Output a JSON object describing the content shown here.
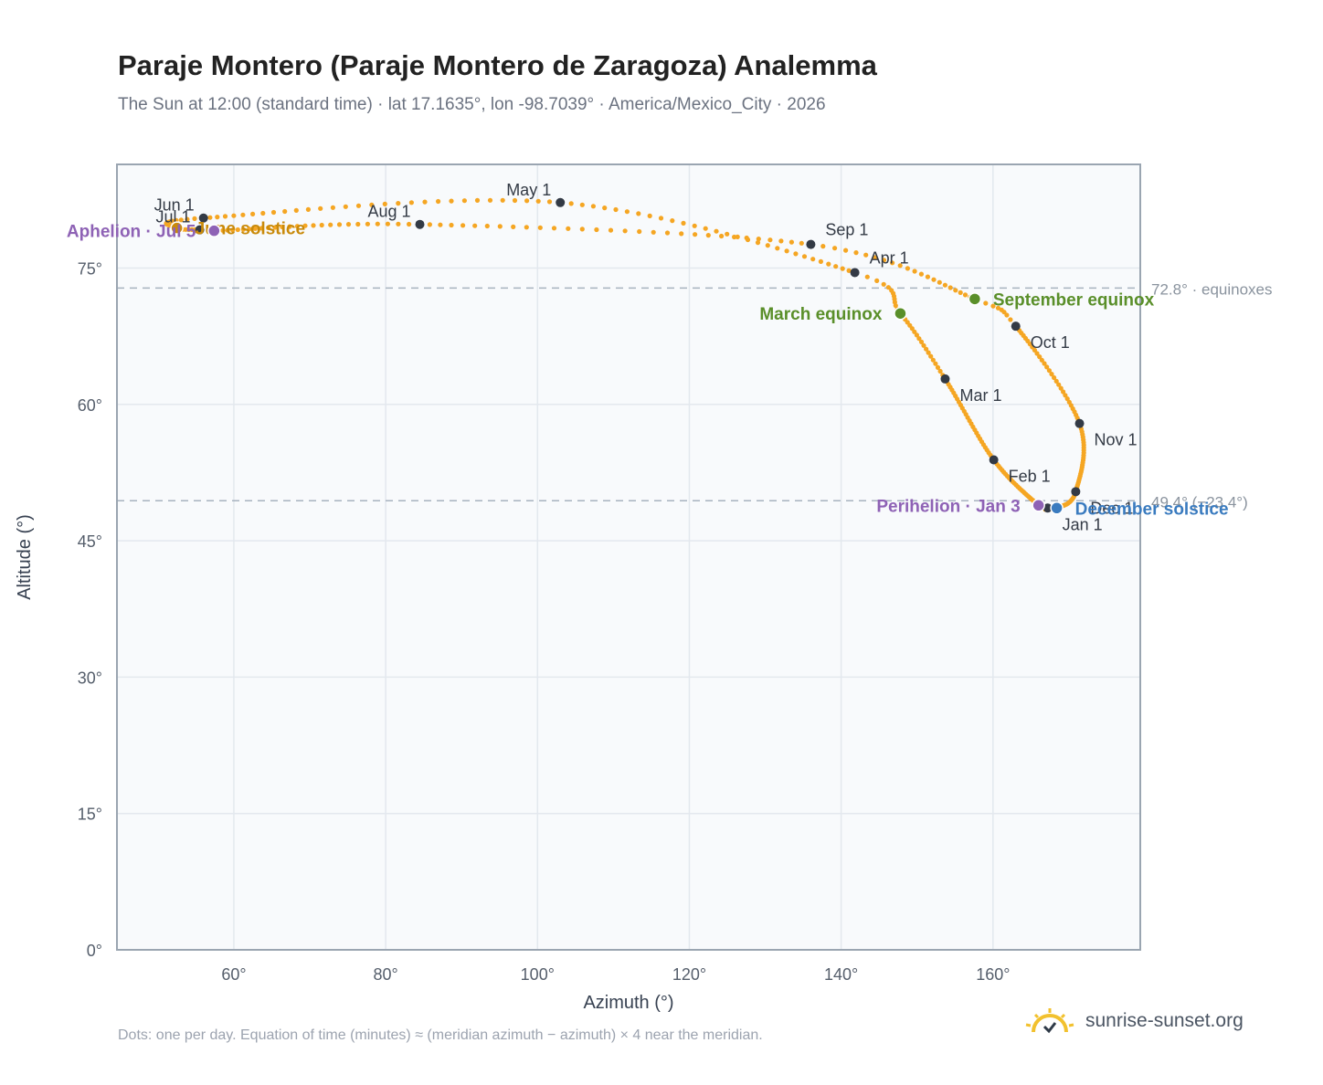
{
  "header": {
    "title": "Paraje Montero (Paraje Montero de Zaragoza) Analemma",
    "subtitle": "The Sun at 12:00 (standard time) · lat 17.1635°, lon -98.7039° · America/Mexico_City · 2026"
  },
  "footer": {
    "note": "Dots: one per day. Equation of time (minutes) ≈ (meridian azimuth − azimuth) × 4 near the meridian.",
    "brand": "sunrise-sunset.org",
    "brand_icon": "sun-logo-icon"
  },
  "colors": {
    "curve": "#f5a623",
    "month_marker": "#333a45",
    "equinox": "#5a8f2a",
    "solstice_dec": "#3a7bbf",
    "solstice_jun": "#c98a0a",
    "apsis": "#8e62b5",
    "reference_line": "#a7b3bf",
    "plot_bg": "#f8fafc",
    "grid": "#e3e8ee",
    "frame": "#9aa5b1"
  },
  "chart_data": {
    "type": "scatter",
    "xlabel": "Azimuth (°)",
    "ylabel": "Altitude (°)",
    "xlim": [
      44.6,
      179.4
    ],
    "ylim": [
      0,
      86.4
    ],
    "xticks": [
      60,
      80,
      100,
      120,
      140,
      160
    ],
    "yticks": [
      0,
      15,
      30,
      45,
      60,
      75
    ],
    "xtick_labels": [
      "60°",
      "80°",
      "100°",
      "120°",
      "140°",
      "160°"
    ],
    "ytick_labels": [
      "0°",
      "15°",
      "30°",
      "45°",
      "60°",
      "75°"
    ],
    "grid": true,
    "anchors": [
      {
        "doy": 1,
        "az": 167.2,
        "alt": 48.6
      },
      {
        "doy": 3,
        "az": 166.0,
        "alt": 48.9
      },
      {
        "doy": 32,
        "az": 160.1,
        "alt": 53.9
      },
      {
        "doy": 60,
        "az": 153.7,
        "alt": 62.8
      },
      {
        "doy": 79,
        "az": 147.8,
        "alt": 70.0
      },
      {
        "doy": 91,
        "az": 141.8,
        "alt": 74.5
      },
      {
        "doy": 121,
        "az": 103.0,
        "alt": 82.2
      },
      {
        "doy": 152,
        "az": 56.0,
        "alt": 80.5
      },
      {
        "doy": 172,
        "az": 52.5,
        "alt": 79.4
      },
      {
        "doy": 182,
        "az": 55.5,
        "alt": 79.2
      },
      {
        "doy": 186,
        "az": 57.4,
        "alt": 79.1
      },
      {
        "doy": 213,
        "az": 84.5,
        "alt": 79.8
      },
      {
        "doy": 244,
        "az": 136.0,
        "alt": 77.6
      },
      {
        "doy": 266,
        "az": 157.6,
        "alt": 71.6
      },
      {
        "doy": 274,
        "az": 163.0,
        "alt": 68.6
      },
      {
        "doy": 305,
        "az": 171.4,
        "alt": 57.9
      },
      {
        "doy": 335,
        "az": 170.9,
        "alt": 50.4
      },
      {
        "doy": 355,
        "az": 168.4,
        "alt": 48.6
      },
      {
        "doy": 366,
        "az": 167.2,
        "alt": 48.6
      }
    ],
    "month_markers": [
      {
        "label": "Jan 1",
        "az": 167.2,
        "alt": 48.6,
        "anchor": "start"
      },
      {
        "label": "Feb 1",
        "az": 160.1,
        "alt": 53.9,
        "anchor": "start"
      },
      {
        "label": "Mar 1",
        "az": 153.7,
        "alt": 62.8,
        "anchor": "start"
      },
      {
        "label": "Apr 1",
        "az": 141.8,
        "alt": 74.5,
        "anchor": "start"
      },
      {
        "label": "May 1",
        "az": 103.0,
        "alt": 82.2,
        "anchor": "end"
      },
      {
        "label": "Jun 1",
        "az": 56.0,
        "alt": 80.5,
        "anchor": "end"
      },
      {
        "label": "Jul 1",
        "az": 55.5,
        "alt": 79.2,
        "anchor": "end"
      },
      {
        "label": "Aug 1",
        "az": 84.5,
        "alt": 79.8,
        "anchor": "end"
      },
      {
        "label": "Sep 1",
        "az": 136.0,
        "alt": 77.6,
        "anchor": "start"
      },
      {
        "label": "Oct 1",
        "az": 163.0,
        "alt": 68.6,
        "anchor": "start"
      },
      {
        "label": "Nov 1",
        "az": 171.4,
        "alt": 57.9,
        "anchor": "start"
      },
      {
        "label": "Dec 1",
        "az": 170.9,
        "alt": 50.4,
        "anchor": "start"
      }
    ],
    "events": [
      {
        "label": "March equinox",
        "az": 147.8,
        "alt": 70.0,
        "color_key": "equinox",
        "side": "left"
      },
      {
        "label": "September equinox",
        "az": 157.6,
        "alt": 71.6,
        "color_key": "equinox",
        "side": "right"
      },
      {
        "label": "June solstice",
        "az": 52.5,
        "alt": 79.4,
        "color_key": "solstice_jun",
        "side": "right"
      },
      {
        "label": "December solstice",
        "az": 168.4,
        "alt": 48.6,
        "color_key": "solstice_dec",
        "side": "right"
      },
      {
        "label": "Perihelion · Jan 3",
        "az": 166.0,
        "alt": 48.9,
        "color_key": "apsis",
        "side": "left"
      },
      {
        "label": "Aphelion · Jul 5",
        "az": 57.4,
        "alt": 79.1,
        "color_key": "apsis",
        "side": "left"
      }
    ],
    "reference_lines": [
      {
        "alt": 72.8,
        "label": "72.8° · equinoxes"
      },
      {
        "alt": 49.4,
        "label": "49.4° (−23.4°)"
      }
    ]
  }
}
